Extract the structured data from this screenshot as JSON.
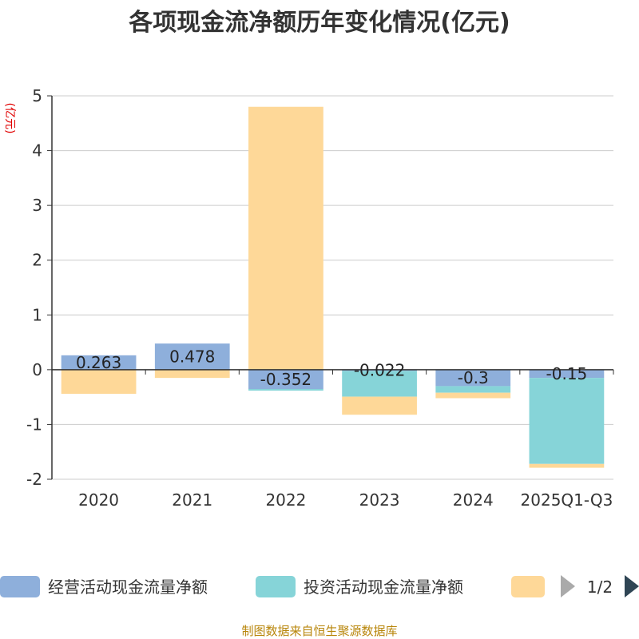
{
  "chart_data": {
    "type": "bar",
    "stacked": true,
    "title": "各项现金流净额历年变化情况(亿元)",
    "ylabel": "(亿元)",
    "xlabel": "",
    "ylim": [
      -2,
      5
    ],
    "yticks": [
      -2,
      -1,
      0,
      1,
      2,
      3,
      4,
      5
    ],
    "grid": true,
    "categories": [
      "2020",
      "2021",
      "2022",
      "2023",
      "2024",
      "2025Q1-Q3"
    ],
    "series": [
      {
        "name": "经营活动现金流量净额",
        "color": "#8eafdb",
        "values": [
          0.263,
          0.478,
          -0.352,
          -0.022,
          -0.3,
          -0.15
        ]
      },
      {
        "name": "投资活动现金流量净额",
        "color": "#86d4d8",
        "values": [
          0,
          0,
          -0.03,
          -0.47,
          -0.12,
          -1.57
        ]
      },
      {
        "name": "",
        "color": "#fed898",
        "values": [
          -0.44,
          -0.15,
          4.8,
          -0.33,
          -0.1,
          -0.07
        ]
      }
    ],
    "data_labels": [
      "0.263",
      "0.478",
      "-0.352",
      "-0.022",
      "-0.3",
      "-0.15"
    ],
    "legend_position": "bottom",
    "legend_page": "1/2",
    "source": "制图数据来自恒生聚源数据库"
  }
}
